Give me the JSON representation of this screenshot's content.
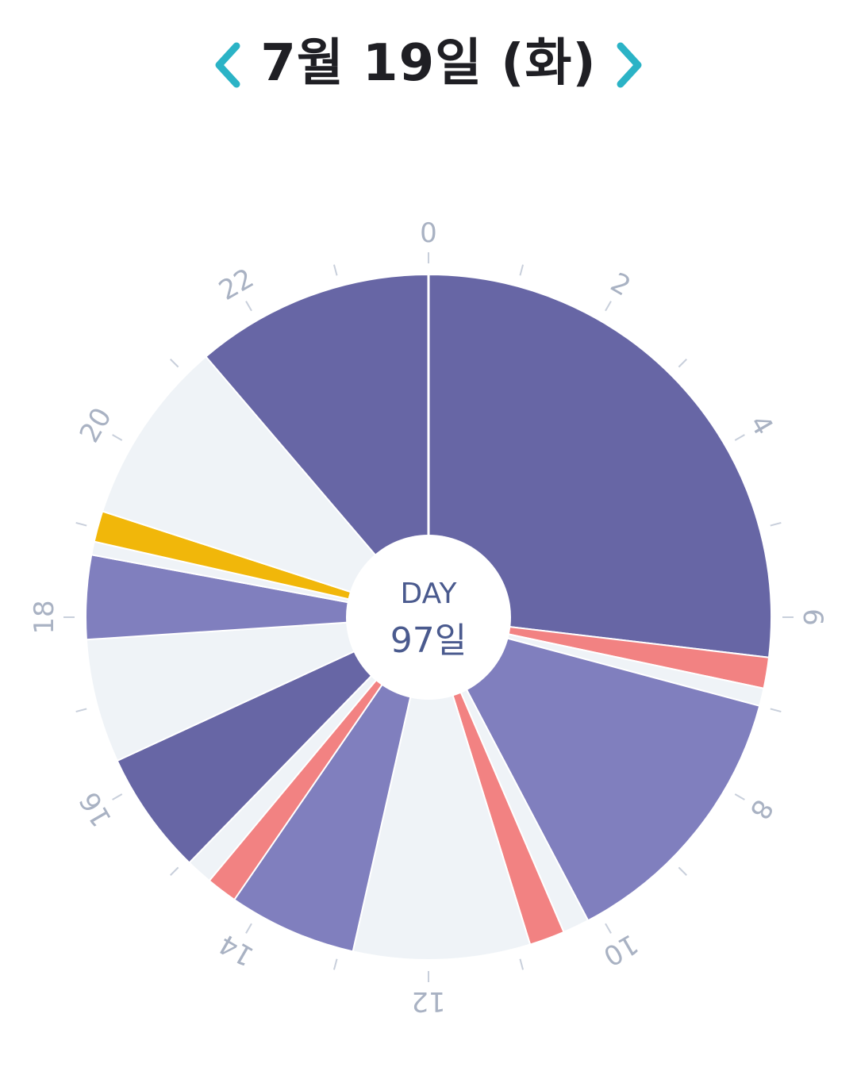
{
  "header": {
    "date_title": "7월 19일 (화)",
    "prev_icon": "chevron-left-icon",
    "next_icon": "chevron-right-icon",
    "accent_color": "#2bb3c6"
  },
  "center": {
    "line1": "DAY",
    "line2": "97일"
  },
  "chart_data": {
    "type": "pie",
    "unit": "hour",
    "range": [
      0,
      24
    ],
    "hour_labels": [
      "0",
      "2",
      "4",
      "6",
      "8",
      "10",
      "12",
      "14",
      "16",
      "18",
      "20",
      "22"
    ],
    "colors": {
      "sleep": "#6766a5",
      "nap": "#807fbe",
      "feed": "#f28282",
      "other": "#f1b70a",
      "empty": "#eff3f7"
    },
    "segments": [
      {
        "kind": "sleep",
        "start": 0.0,
        "end": 6.45
      },
      {
        "kind": "feed",
        "start": 6.45,
        "end": 6.8
      },
      {
        "kind": "empty",
        "start": 6.8,
        "end": 7.0
      },
      {
        "kind": "nap",
        "start": 7.0,
        "end": 10.15
      },
      {
        "kind": "empty",
        "start": 10.15,
        "end": 10.45
      },
      {
        "kind": "feed",
        "start": 10.45,
        "end": 10.85
      },
      {
        "kind": "empty",
        "start": 10.85,
        "end": 12.85
      },
      {
        "kind": "nap",
        "start": 12.85,
        "end": 14.3
      },
      {
        "kind": "feed",
        "start": 14.3,
        "end": 14.65
      },
      {
        "kind": "empty",
        "start": 14.65,
        "end": 14.95
      },
      {
        "kind": "sleep",
        "start": 14.95,
        "end": 16.35
      },
      {
        "kind": "empty",
        "start": 16.35,
        "end": 17.75
      },
      {
        "kind": "nap",
        "start": 17.75,
        "end": 18.7
      },
      {
        "kind": "empty",
        "start": 18.7,
        "end": 18.85
      },
      {
        "kind": "other",
        "start": 18.85,
        "end": 19.2
      },
      {
        "kind": "empty",
        "start": 19.2,
        "end": 21.3
      },
      {
        "kind": "sleep",
        "start": 21.3,
        "end": 24.0
      }
    ]
  }
}
